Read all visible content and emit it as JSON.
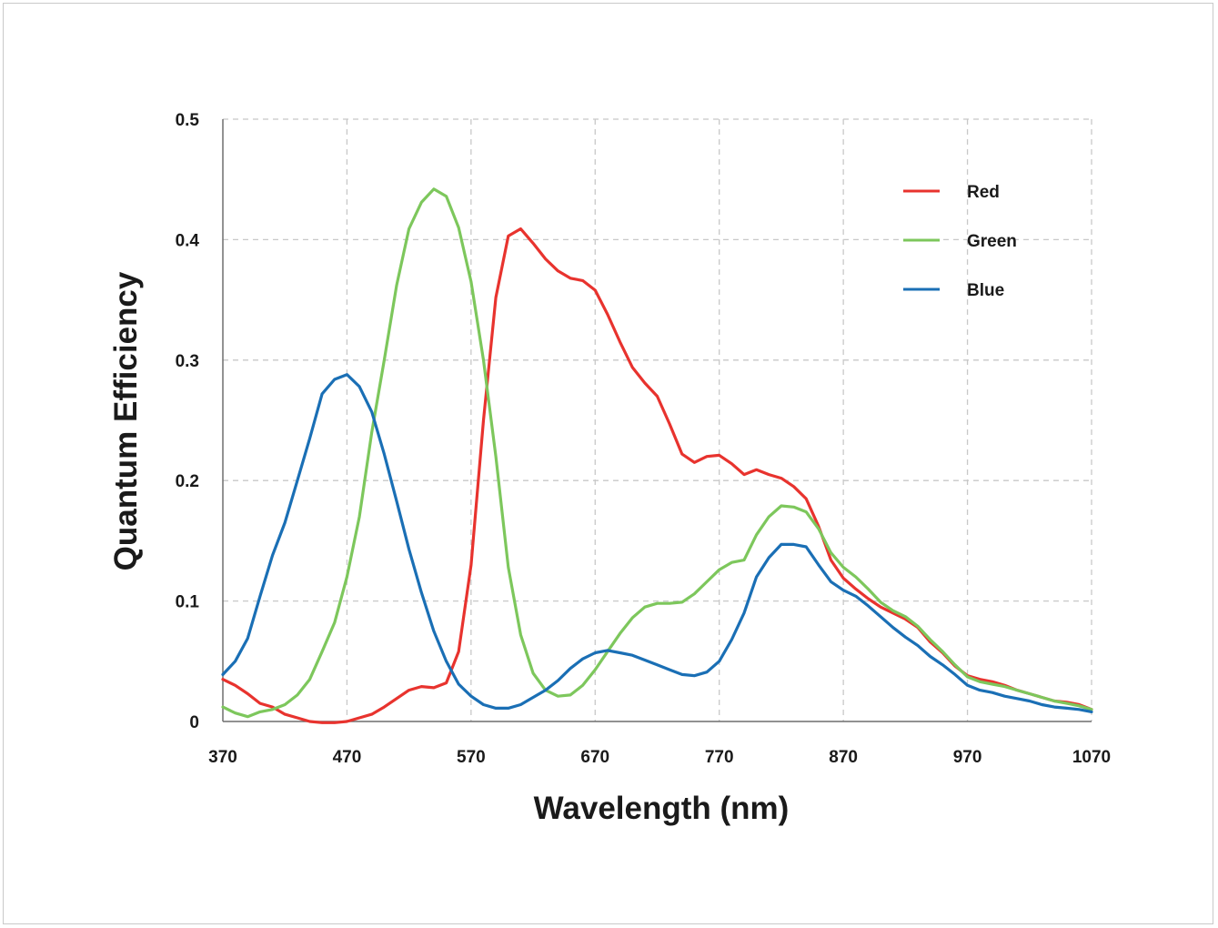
{
  "chart_data": {
    "type": "line",
    "title": "",
    "xlabel": "Wavelength (nm)",
    "ylabel": "Quantum Efficiency",
    "xlim": [
      370,
      1070
    ],
    "ylim": [
      0,
      0.5
    ],
    "x_ticks": [
      "370",
      "470",
      "570",
      "670",
      "770",
      "870",
      "970",
      "1070"
    ],
    "y_ticks": [
      "0",
      "0.1",
      "0.2",
      "0.3",
      "0.4",
      "0.5"
    ],
    "grid": true,
    "legend_position": "top-right",
    "series": [
      {
        "name": "Red",
        "color": "#e8332e",
        "points": [
          [
            370,
            0.035
          ],
          [
            380,
            0.03
          ],
          [
            390,
            0.023
          ],
          [
            400,
            0.015
          ],
          [
            410,
            0.012
          ],
          [
            420,
            0.006
          ],
          [
            430,
            0.003
          ],
          [
            440,
            0.0
          ],
          [
            450,
            -0.001
          ],
          [
            460,
            -0.001
          ],
          [
            470,
            0.0
          ],
          [
            480,
            0.003
          ],
          [
            490,
            0.006
          ],
          [
            500,
            0.012
          ],
          [
            510,
            0.019
          ],
          [
            520,
            0.026
          ],
          [
            530,
            0.029
          ],
          [
            540,
            0.028
          ],
          [
            550,
            0.032
          ],
          [
            560,
            0.058
          ],
          [
            570,
            0.13
          ],
          [
            580,
            0.25
          ],
          [
            590,
            0.352
          ],
          [
            600,
            0.403
          ],
          [
            610,
            0.409
          ],
          [
            620,
            0.397
          ],
          [
            630,
            0.384
          ],
          [
            640,
            0.374
          ],
          [
            650,
            0.368
          ],
          [
            660,
            0.366
          ],
          [
            670,
            0.358
          ],
          [
            680,
            0.338
          ],
          [
            690,
            0.315
          ],
          [
            700,
            0.294
          ],
          [
            710,
            0.281
          ],
          [
            720,
            0.27
          ],
          [
            730,
            0.247
          ],
          [
            740,
            0.222
          ],
          [
            750,
            0.215
          ],
          [
            760,
            0.22
          ],
          [
            770,
            0.221
          ],
          [
            780,
            0.214
          ],
          [
            790,
            0.205
          ],
          [
            800,
            0.209
          ],
          [
            810,
            0.205
          ],
          [
            820,
            0.202
          ],
          [
            830,
            0.195
          ],
          [
            840,
            0.185
          ],
          [
            850,
            0.162
          ],
          [
            860,
            0.134
          ],
          [
            870,
            0.119
          ],
          [
            880,
            0.11
          ],
          [
            890,
            0.102
          ],
          [
            900,
            0.095
          ],
          [
            910,
            0.09
          ],
          [
            920,
            0.085
          ],
          [
            930,
            0.078
          ],
          [
            940,
            0.066
          ],
          [
            950,
            0.057
          ],
          [
            960,
            0.046
          ],
          [
            970,
            0.038
          ],
          [
            980,
            0.035
          ],
          [
            990,
            0.033
          ],
          [
            1000,
            0.03
          ],
          [
            1010,
            0.026
          ],
          [
            1020,
            0.023
          ],
          [
            1030,
            0.02
          ],
          [
            1040,
            0.017
          ],
          [
            1050,
            0.016
          ],
          [
            1060,
            0.014
          ],
          [
            1070,
            0.01
          ]
        ]
      },
      {
        "name": "Green",
        "color": "#7dc75c",
        "points": [
          [
            370,
            0.012
          ],
          [
            380,
            0.007
          ],
          [
            390,
            0.004
          ],
          [
            400,
            0.008
          ],
          [
            410,
            0.01
          ],
          [
            420,
            0.014
          ],
          [
            430,
            0.022
          ],
          [
            440,
            0.035
          ],
          [
            450,
            0.058
          ],
          [
            460,
            0.082
          ],
          [
            470,
            0.12
          ],
          [
            480,
            0.17
          ],
          [
            490,
            0.24
          ],
          [
            500,
            0.3
          ],
          [
            510,
            0.362
          ],
          [
            520,
            0.409
          ],
          [
            530,
            0.431
          ],
          [
            540,
            0.442
          ],
          [
            550,
            0.436
          ],
          [
            560,
            0.41
          ],
          [
            570,
            0.365
          ],
          [
            580,
            0.3
          ],
          [
            590,
            0.22
          ],
          [
            600,
            0.128
          ],
          [
            610,
            0.072
          ],
          [
            620,
            0.04
          ],
          [
            630,
            0.026
          ],
          [
            640,
            0.021
          ],
          [
            650,
            0.022
          ],
          [
            660,
            0.03
          ],
          [
            670,
            0.043
          ],
          [
            680,
            0.058
          ],
          [
            690,
            0.073
          ],
          [
            700,
            0.086
          ],
          [
            710,
            0.095
          ],
          [
            720,
            0.098
          ],
          [
            730,
            0.098
          ],
          [
            740,
            0.099
          ],
          [
            750,
            0.106
          ],
          [
            760,
            0.116
          ],
          [
            770,
            0.126
          ],
          [
            780,
            0.132
          ],
          [
            790,
            0.134
          ],
          [
            800,
            0.155
          ],
          [
            810,
            0.17
          ],
          [
            820,
            0.179
          ],
          [
            830,
            0.178
          ],
          [
            840,
            0.174
          ],
          [
            850,
            0.16
          ],
          [
            860,
            0.14
          ],
          [
            870,
            0.128
          ],
          [
            880,
            0.12
          ],
          [
            890,
            0.11
          ],
          [
            900,
            0.099
          ],
          [
            910,
            0.092
          ],
          [
            920,
            0.087
          ],
          [
            930,
            0.079
          ],
          [
            940,
            0.068
          ],
          [
            950,
            0.058
          ],
          [
            960,
            0.047
          ],
          [
            970,
            0.037
          ],
          [
            980,
            0.033
          ],
          [
            990,
            0.031
          ],
          [
            1000,
            0.029
          ],
          [
            1010,
            0.026
          ],
          [
            1020,
            0.023
          ],
          [
            1030,
            0.02
          ],
          [
            1040,
            0.017
          ],
          [
            1050,
            0.015
          ],
          [
            1060,
            0.013
          ],
          [
            1070,
            0.01
          ]
        ]
      },
      {
        "name": "Blue",
        "color": "#1a6fb5",
        "points": [
          [
            370,
            0.039
          ],
          [
            380,
            0.05
          ],
          [
            390,
            0.069
          ],
          [
            400,
            0.104
          ],
          [
            410,
            0.138
          ],
          [
            420,
            0.165
          ],
          [
            430,
            0.2
          ],
          [
            440,
            0.235
          ],
          [
            450,
            0.272
          ],
          [
            460,
            0.284
          ],
          [
            470,
            0.288
          ],
          [
            480,
            0.278
          ],
          [
            490,
            0.257
          ],
          [
            500,
            0.222
          ],
          [
            510,
            0.183
          ],
          [
            520,
            0.143
          ],
          [
            530,
            0.107
          ],
          [
            540,
            0.075
          ],
          [
            550,
            0.05
          ],
          [
            560,
            0.031
          ],
          [
            570,
            0.021
          ],
          [
            580,
            0.014
          ],
          [
            590,
            0.011
          ],
          [
            600,
            0.011
          ],
          [
            610,
            0.014
          ],
          [
            620,
            0.02
          ],
          [
            630,
            0.026
          ],
          [
            640,
            0.034
          ],
          [
            650,
            0.044
          ],
          [
            660,
            0.052
          ],
          [
            670,
            0.057
          ],
          [
            680,
            0.059
          ],
          [
            690,
            0.057
          ],
          [
            700,
            0.055
          ],
          [
            710,
            0.051
          ],
          [
            720,
            0.047
          ],
          [
            730,
            0.043
          ],
          [
            740,
            0.039
          ],
          [
            750,
            0.038
          ],
          [
            760,
            0.041
          ],
          [
            770,
            0.05
          ],
          [
            780,
            0.068
          ],
          [
            790,
            0.09
          ],
          [
            800,
            0.12
          ],
          [
            810,
            0.136
          ],
          [
            820,
            0.147
          ],
          [
            830,
            0.147
          ],
          [
            840,
            0.145
          ],
          [
            850,
            0.13
          ],
          [
            860,
            0.116
          ],
          [
            870,
            0.109
          ],
          [
            880,
            0.104
          ],
          [
            890,
            0.096
          ],
          [
            900,
            0.087
          ],
          [
            910,
            0.078
          ],
          [
            920,
            0.07
          ],
          [
            930,
            0.063
          ],
          [
            940,
            0.054
          ],
          [
            950,
            0.047
          ],
          [
            960,
            0.039
          ],
          [
            970,
            0.03
          ],
          [
            980,
            0.026
          ],
          [
            990,
            0.024
          ],
          [
            1000,
            0.021
          ],
          [
            1010,
            0.019
          ],
          [
            1020,
            0.017
          ],
          [
            1030,
            0.014
          ],
          [
            1040,
            0.012
          ],
          [
            1050,
            0.011
          ],
          [
            1060,
            0.01
          ],
          [
            1070,
            0.008
          ]
        ]
      }
    ]
  }
}
